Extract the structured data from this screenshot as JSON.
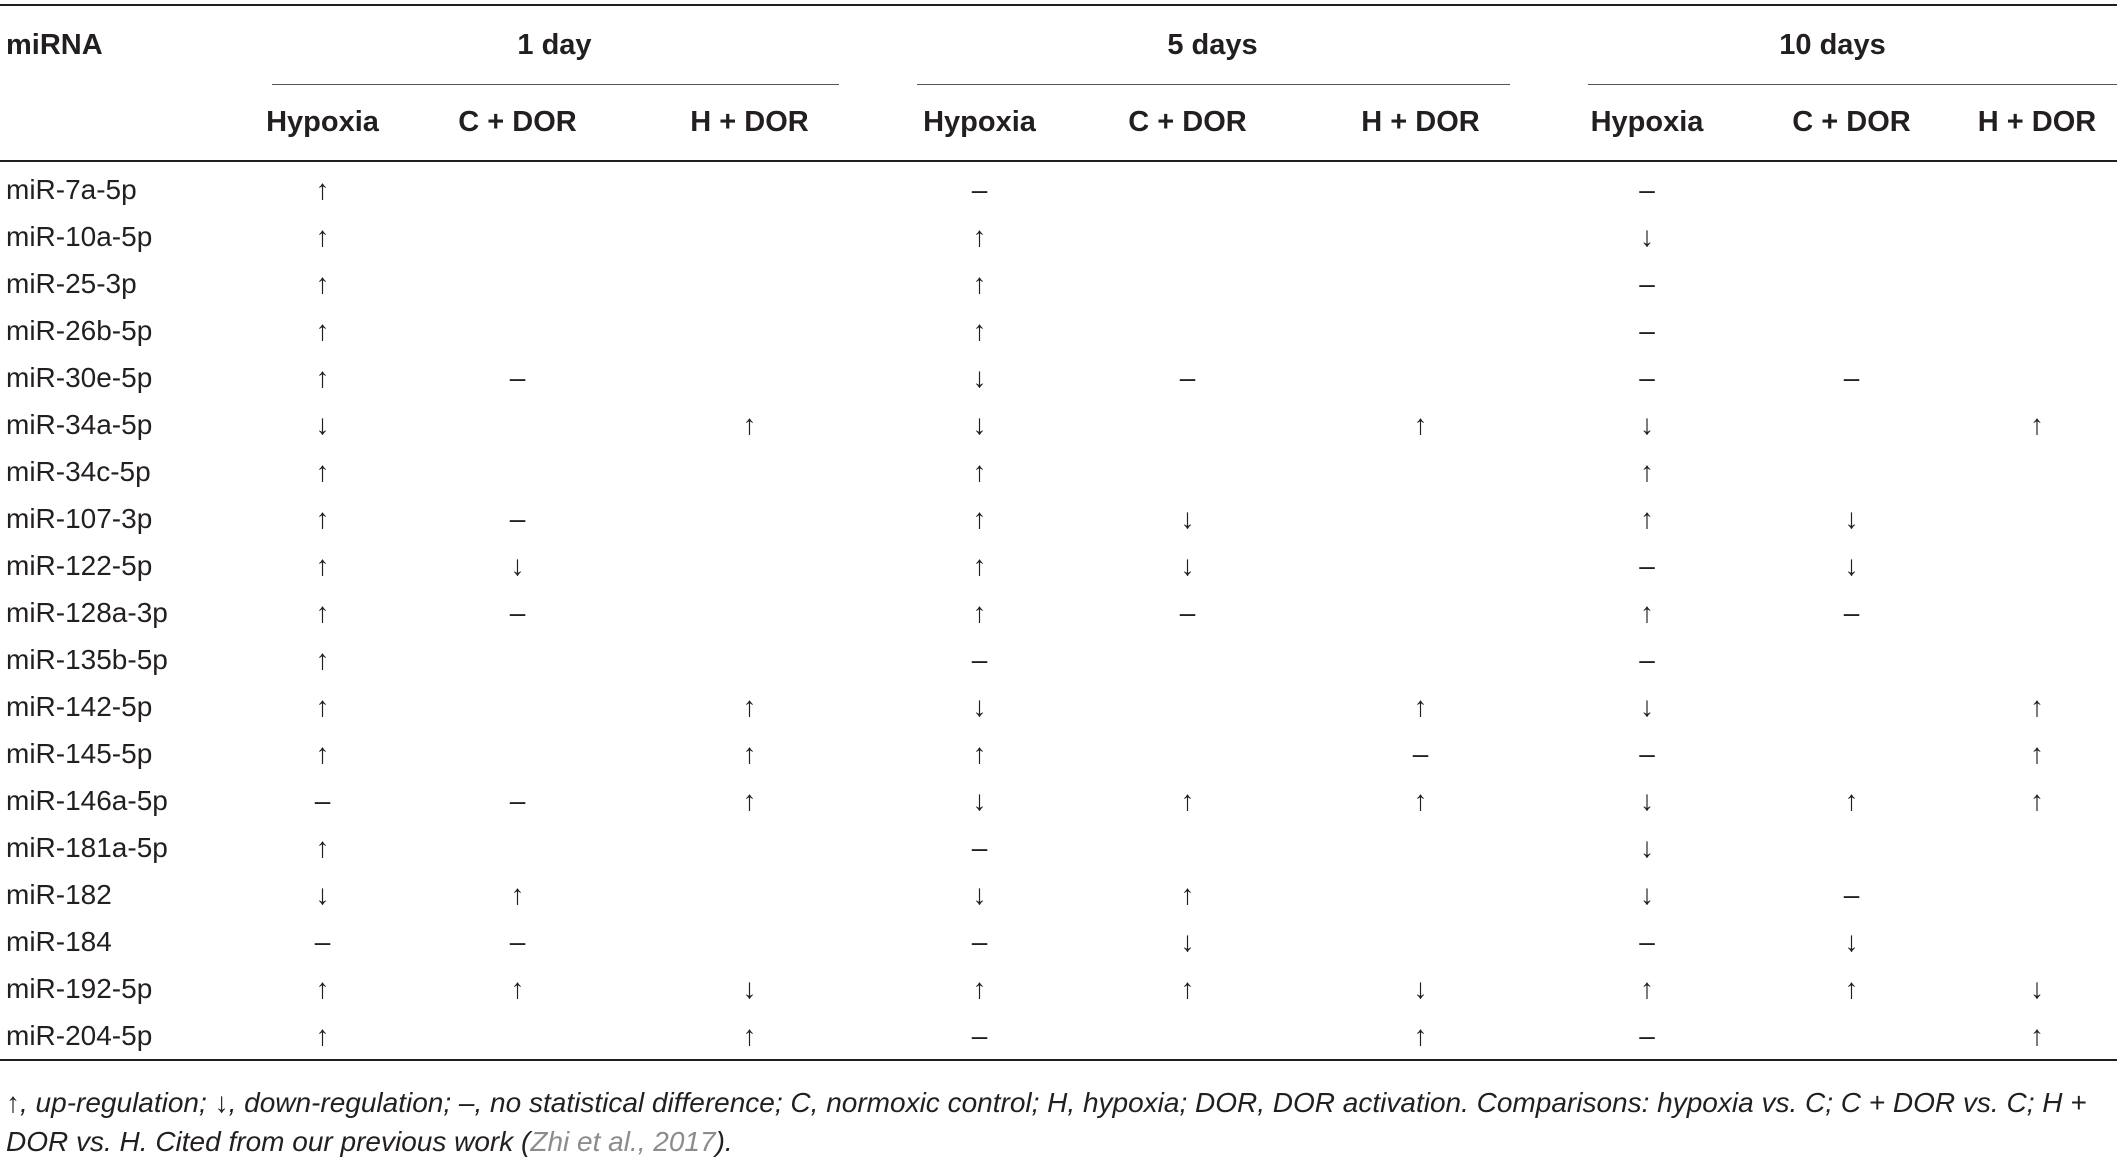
{
  "table": {
    "header": {
      "first_column": "miRNA",
      "groups": [
        "1 day",
        "5 days",
        "10 days"
      ],
      "subcolumns": [
        "Hypoxia",
        "C + DOR",
        "H + DOR"
      ]
    },
    "rows": [
      {
        "mirna": "miR-7a-5p",
        "values": [
          "↑",
          "",
          "",
          "–",
          "",
          "",
          "–",
          "",
          ""
        ]
      },
      {
        "mirna": "miR-10a-5p",
        "values": [
          "↑",
          "",
          "",
          "↑",
          "",
          "",
          "↓",
          "",
          ""
        ]
      },
      {
        "mirna": "miR-25-3p",
        "values": [
          "↑",
          "",
          "",
          "↑",
          "",
          "",
          "–",
          "",
          ""
        ]
      },
      {
        "mirna": "miR-26b-5p",
        "values": [
          "↑",
          "",
          "",
          "↑",
          "",
          "",
          "–",
          "",
          ""
        ]
      },
      {
        "mirna": "miR-30e-5p",
        "values": [
          "↑",
          "–",
          "",
          "↓",
          "–",
          "",
          "–",
          "–",
          ""
        ]
      },
      {
        "mirna": "miR-34a-5p",
        "values": [
          "↓",
          "",
          "↑",
          "↓",
          "",
          "↑",
          "↓",
          "",
          "↑"
        ]
      },
      {
        "mirna": "miR-34c-5p",
        "values": [
          "↑",
          "",
          "",
          "↑",
          "",
          "",
          "↑",
          "",
          ""
        ]
      },
      {
        "mirna": "miR-107-3p",
        "values": [
          "↑",
          "–",
          "",
          "↑",
          "↓",
          "",
          "↑",
          "↓",
          ""
        ]
      },
      {
        "mirna": "miR-122-5p",
        "values": [
          "↑",
          "↓",
          "",
          "↑",
          "↓",
          "",
          "–",
          "↓",
          ""
        ]
      },
      {
        "mirna": "miR-128a-3p",
        "values": [
          "↑",
          "–",
          "",
          "↑",
          "–",
          "",
          "↑",
          "–",
          ""
        ]
      },
      {
        "mirna": "miR-135b-5p",
        "values": [
          "↑",
          "",
          "",
          "–",
          "",
          "",
          "–",
          "",
          ""
        ]
      },
      {
        "mirna": "miR-142-5p",
        "values": [
          "↑",
          "",
          "↑",
          "↓",
          "",
          "↑",
          "↓",
          "",
          "↑"
        ]
      },
      {
        "mirna": "miR-145-5p",
        "values": [
          "↑",
          "",
          "↑",
          "↑",
          "",
          "–",
          "–",
          "",
          "↑"
        ]
      },
      {
        "mirna": "miR-146a-5p",
        "values": [
          "–",
          "–",
          "↑",
          "↓",
          "↑",
          "↑",
          "↓",
          "↑",
          "↑"
        ]
      },
      {
        "mirna": "miR-181a-5p",
        "values": [
          "↑",
          "",
          "",
          "–",
          "",
          "",
          "↓",
          "",
          ""
        ]
      },
      {
        "mirna": "miR-182",
        "values": [
          "↓",
          "↑",
          "",
          "↓",
          "↑",
          "",
          "↓",
          "–",
          ""
        ]
      },
      {
        "mirna": "miR-184",
        "values": [
          "–",
          "–",
          "",
          "–",
          "↓",
          "",
          "–",
          "↓",
          ""
        ]
      },
      {
        "mirna": "miR-192-5p",
        "values": [
          "↑",
          "↑",
          "↓",
          "↑",
          "↑",
          "↓",
          "↑",
          "↑",
          "↓"
        ]
      },
      {
        "mirna": "miR-204-5p",
        "values": [
          "↑",
          "",
          "↑",
          "–",
          "",
          "↑",
          "–",
          "",
          "↑"
        ]
      }
    ]
  },
  "footnote": {
    "text_before_citation": "↑, up-regulation; ↓, down-regulation; –, no statistical difference; C, normoxic control; H, hypoxia; DOR, DOR activation. Comparisons: hypoxia vs. C; C + DOR vs. C; H + DOR vs. H. Cited from our previous work (",
    "citation": "Zhi et al., 2017",
    "text_after_citation": ")."
  }
}
